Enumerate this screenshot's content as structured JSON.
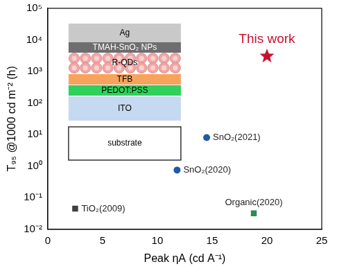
{
  "chart_data": {
    "type": "scatter",
    "x_label": "Peak ηA (cd A⁻¹)",
    "y_label": "T₉₅ @1000 cd m⁻² (h)",
    "log": "y",
    "grid": false,
    "xlim": [
      0,
      25
    ],
    "xticks": [
      0,
      5,
      10,
      15,
      20,
      25
    ],
    "ylim": [
      0.01,
      100000
    ],
    "yticks": [
      {
        "value": 0.01,
        "label": "10⁻²"
      },
      {
        "value": 0.1,
        "label": "10⁻¹"
      },
      {
        "value": 1,
        "label": "10⁰"
      },
      {
        "value": 10,
        "label": "10¹"
      },
      {
        "value": 100,
        "label": "10²"
      },
      {
        "value": 1000,
        "label": "10³"
      },
      {
        "value": 10000,
        "label": "10⁴"
      },
      {
        "value": 100000,
        "label": "10⁵"
      }
    ],
    "series": [
      {
        "name": "TiO₂(2009)",
        "color": "#404040",
        "marker": "square",
        "x": [
          2.5
        ],
        "values": [
          0.045
        ]
      },
      {
        "name": "SnO₂(2020)",
        "color": "#1f5aa6",
        "marker": "circle",
        "x": [
          11.8
        ],
        "values": [
          0.75
        ]
      },
      {
        "name": "SnO₂(2021)",
        "color": "#1f5aa6",
        "marker": "circle",
        "x": [
          14.5
        ],
        "values": [
          8
        ]
      },
      {
        "name": "Organic(2020)",
        "color": "#2e8b57",
        "marker": "square",
        "x": [
          18.8
        ],
        "values": [
          0.032
        ]
      },
      {
        "name": "This work",
        "color": "#c8102e",
        "marker": "star",
        "x": [
          20
        ],
        "values": [
          3200
        ]
      }
    ],
    "inset": {
      "layers": [
        "Ag",
        "TMAH-SnO₂ NPs",
        "R-QDs",
        "TFB",
        "PEDOT:PSS",
        "ITO",
        "substrate"
      ]
    }
  }
}
